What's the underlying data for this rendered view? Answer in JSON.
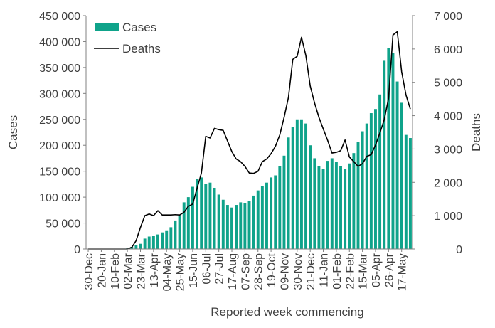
{
  "chart_data": {
    "type": "bar+line",
    "xlabel": "Reported week commencing",
    "ylabel_left": "Cases",
    "ylabel_right": "Deaths",
    "ylim_left": [
      0,
      450000
    ],
    "ylim_right": [
      0,
      7000
    ],
    "left_ticks": [
      "0",
      "50 000",
      "100 000",
      "150 000",
      "200 000",
      "250 000",
      "300 000",
      "350 000",
      "400 000",
      "450 000"
    ],
    "right_ticks": [
      "0",
      "1 000",
      "2 000",
      "3 000",
      "4 000",
      "5 000",
      "6 000",
      "7 000"
    ],
    "grid": false,
    "legend": {
      "position": "top-left",
      "cases_label": "Cases",
      "deaths_label": "Deaths"
    },
    "colors": {
      "cases": "#0fa38a",
      "deaths": "#000000",
      "axis": "#808080",
      "text": "#404040"
    },
    "x_tick_labels": [
      "30-Dec",
      "20-Jan",
      "10-Feb",
      "02-Mar",
      "23-Mar",
      "13-Apr",
      "04-May",
      "25-May",
      "15-Jun",
      "06-Jul",
      "27-Jul",
      "17-Aug",
      "07-Sep",
      "28-Sep",
      "19-Oct",
      "09-Nov",
      "30-Nov",
      "21-Dec",
      "11-Jan",
      "01-Feb",
      "22-Feb",
      "15-Mar",
      "05-Apr",
      "26-Apr",
      "17-May"
    ],
    "x_tick_every": 3,
    "series": [
      {
        "name": "Cases",
        "type": "bar",
        "axis": "left",
        "values": [
          0,
          0,
          0,
          0,
          0,
          0,
          0,
          0,
          0,
          2000,
          4000,
          7000,
          10000,
          20000,
          24000,
          25000,
          28000,
          32000,
          36000,
          42000,
          55000,
          65000,
          90000,
          100000,
          120000,
          135000,
          138000,
          125000,
          128000,
          118000,
          105000,
          95000,
          85000,
          80000,
          85000,
          90000,
          88000,
          92000,
          103000,
          113000,
          122000,
          128000,
          138000,
          142000,
          160000,
          180000,
          215000,
          235000,
          250000,
          250000,
          242000,
          200000,
          175000,
          160000,
          155000,
          170000,
          175000,
          168000,
          160000,
          155000,
          165000,
          185000,
          207000,
          227000,
          242000,
          262000,
          270000,
          298000,
          363000,
          388000,
          378000,
          323000,
          282000,
          220000,
          214000
        ]
      },
      {
        "name": "Deaths",
        "type": "line",
        "axis": "right",
        "values": [
          0,
          0,
          0,
          0,
          0,
          0,
          0,
          0,
          0,
          0,
          50,
          250,
          650,
          1000,
          1050,
          1000,
          1150,
          1020,
          1020,
          1020,
          1030,
          1020,
          1100,
          1280,
          1350,
          1820,
          2280,
          3380,
          3330,
          3620,
          3580,
          3560,
          3240,
          2920,
          2700,
          2620,
          2480,
          2280,
          2270,
          2330,
          2620,
          2700,
          2860,
          3080,
          3420,
          3950,
          4550,
          5690,
          5780,
          6350,
          5800,
          4890,
          4380,
          3950,
          3600,
          3260,
          2880,
          2900,
          2950,
          3270,
          2760,
          2620,
          2480,
          2560,
          2780,
          2830,
          3120,
          3480,
          3880,
          4520,
          6420,
          6520,
          5320,
          4620,
          4200
        ]
      }
    ]
  }
}
